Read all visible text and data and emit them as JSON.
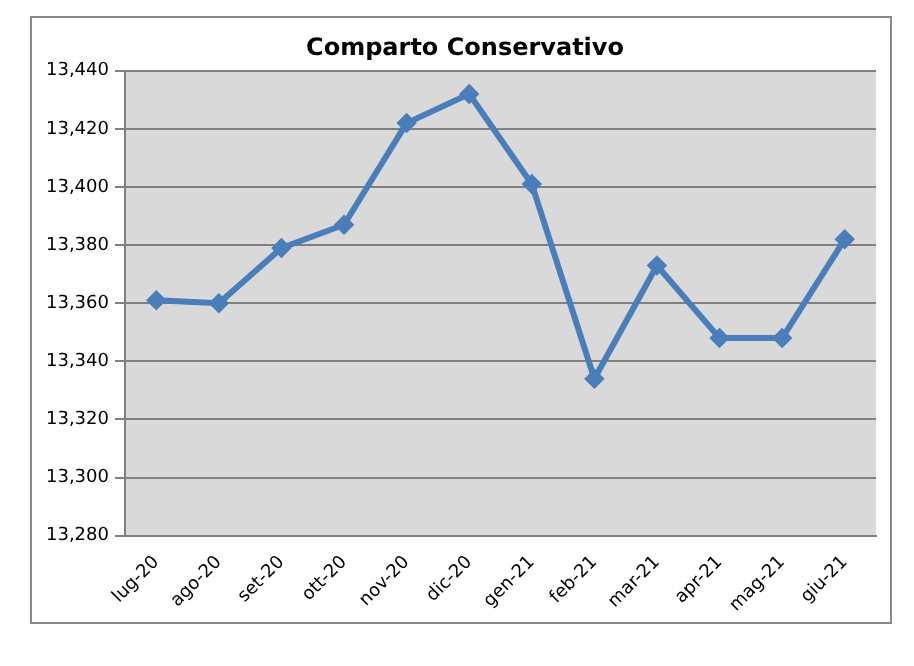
{
  "chart_data": {
    "type": "line",
    "title": "Comparto Conservativo",
    "categories": [
      "lug-20",
      "ago-20",
      "set-20",
      "ott-20",
      "nov-20",
      "dic-20",
      "gen-21",
      "feb-21",
      "mar-21",
      "apr-21",
      "mag-21",
      "giu-21"
    ],
    "series": [
      {
        "color": "#4a7ebb",
        "values": [
          13361,
          13360,
          13379,
          13387,
          13422,
          13432,
          13401,
          13334,
          13373,
          13348,
          13348,
          13382
        ]
      }
    ],
    "ylim": [
      13280,
      13440
    ],
    "yticks": [
      {
        "value": 13280,
        "label": "13,280"
      },
      {
        "value": 13300,
        "label": "13,300"
      },
      {
        "value": 13320,
        "label": "13,320"
      },
      {
        "value": 13340,
        "label": "13,340"
      },
      {
        "value": 13360,
        "label": "13,360"
      },
      {
        "value": 13380,
        "label": "13,380"
      },
      {
        "value": 13400,
        "label": "13,400"
      },
      {
        "value": 13420,
        "label": "13,420"
      },
      {
        "value": 13440,
        "label": "13,440"
      }
    ],
    "grid": "y",
    "legend": false,
    "marker": "diamond",
    "line_style": "solid"
  }
}
